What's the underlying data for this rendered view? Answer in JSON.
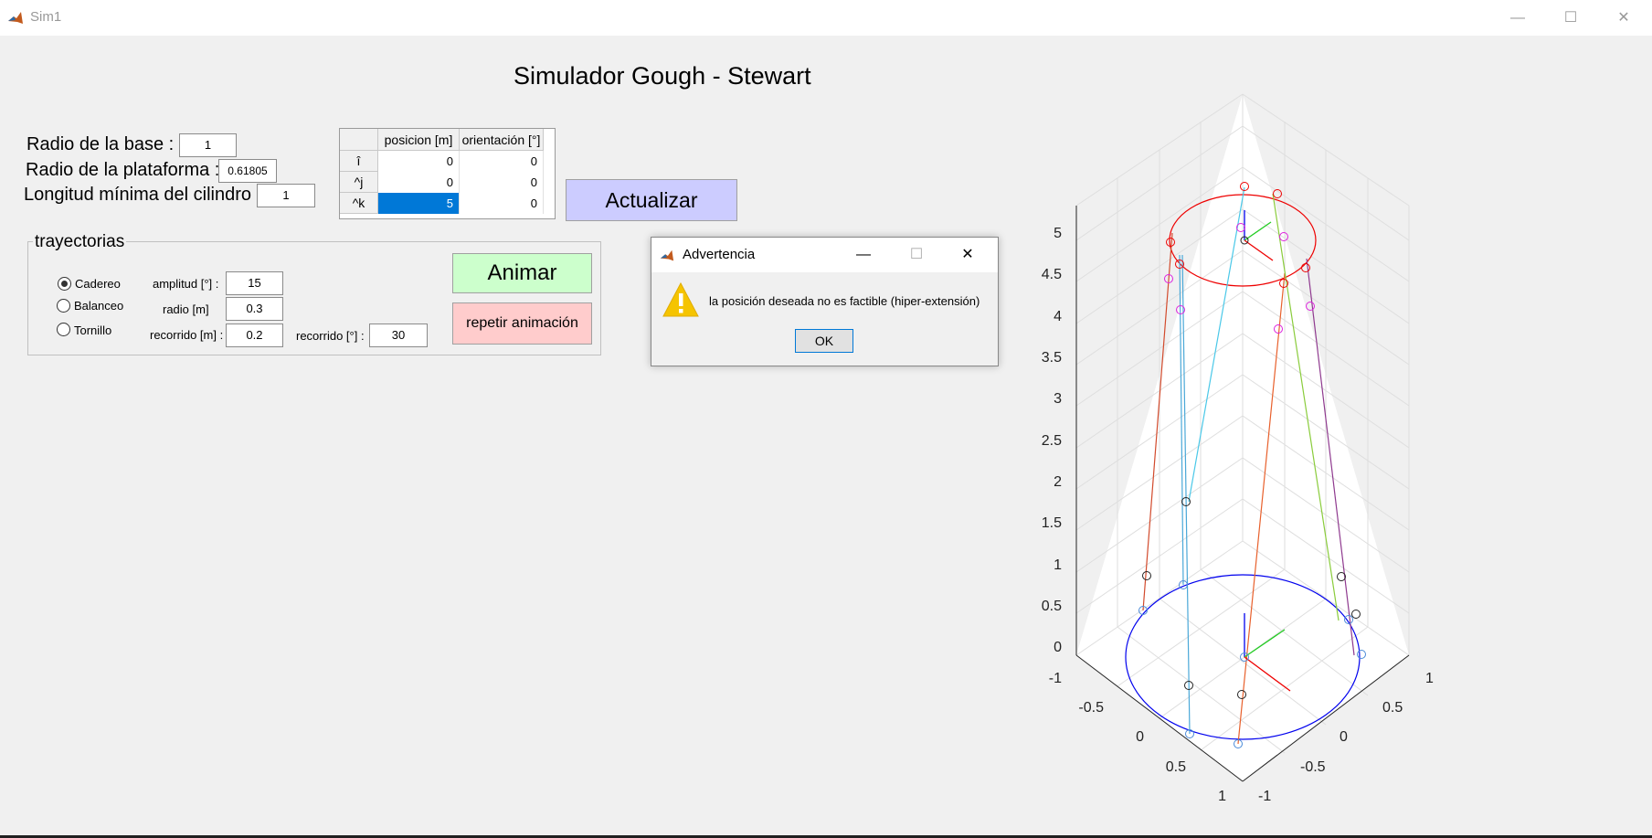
{
  "window": {
    "title": "Sim1",
    "minimize": "—",
    "maximize": "☐",
    "close": "✕"
  },
  "heading": "Simulador Gough - Stewart",
  "params": {
    "base_label": "Radio de la base :",
    "base_value": "1",
    "plat_label": "Radio de la plataforma :",
    "plat_value": "0.61805",
    "cyl_label": "Longitud mínima del cilindro :",
    "cyl_value": "1"
  },
  "table": {
    "col_pos": "posicion [m]",
    "col_ori": "orientación [°]",
    "rows": [
      {
        "label": "î",
        "pos": "0",
        "ori": "0"
      },
      {
        "label": "^j",
        "pos": "0",
        "ori": "0"
      },
      {
        "label": "^k",
        "pos": "5",
        "ori": "0"
      }
    ]
  },
  "buttons": {
    "actualizar": "Actualizar",
    "animar": "Animar",
    "repetir": "repetir animación"
  },
  "colors": {
    "actualizar": "#ccccff",
    "animar": "#ccffcc",
    "repetir": "#ffcccc",
    "selected_cell": "#0078d7"
  },
  "trayectorias": {
    "title": "trayectorias",
    "options": [
      "Cadereo",
      "Balanceo",
      "Tornillo"
    ],
    "selected": "Cadereo",
    "amplitud_label": "amplitud [°] :",
    "amplitud_value": "15",
    "radio_label": "radio [m]",
    "radio_value": "0.3",
    "recorrido_m_label": "recorrido [m] :",
    "recorrido_m_value": "0.2",
    "recorrido_deg_label": "recorrido [°] :",
    "recorrido_deg_value": "30"
  },
  "dialog": {
    "title": "Advertencia",
    "icon": "warning-icon",
    "message": "la posición deseada no es factible (hiper-extensión)",
    "ok": "OK"
  },
  "plot": {
    "z_ticks": [
      "5",
      "4.5",
      "4",
      "3.5",
      "3",
      "2.5",
      "2",
      "1.5",
      "1",
      "0.5",
      "0"
    ],
    "x_ticks": [
      "-1",
      "-0.5",
      "0",
      "0.5",
      "1"
    ],
    "y_ticks": [
      "1",
      "0.5",
      "0",
      "-0.5",
      "-1"
    ]
  }
}
